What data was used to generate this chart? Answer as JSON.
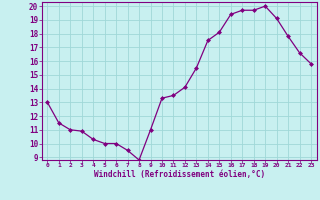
{
  "hours": [
    0,
    1,
    2,
    3,
    4,
    5,
    6,
    7,
    8,
    9,
    10,
    11,
    12,
    13,
    14,
    15,
    16,
    17,
    18,
    19,
    20,
    21,
    22,
    23
  ],
  "values": [
    13,
    11.5,
    11,
    10.9,
    10.3,
    10,
    10,
    9.5,
    8.8,
    11,
    13.3,
    13.5,
    14.1,
    15.5,
    17.5,
    18.1,
    19.4,
    19.7,
    19.7,
    20.0,
    19.1,
    17.8,
    16.6,
    15.8
  ],
  "ylim_min": 8.8,
  "ylim_max": 20.3,
  "yticks": [
    9,
    10,
    11,
    12,
    13,
    14,
    15,
    16,
    17,
    18,
    19,
    20
  ],
  "xticks": [
    0,
    1,
    2,
    3,
    4,
    5,
    6,
    7,
    8,
    9,
    10,
    11,
    12,
    13,
    14,
    15,
    16,
    17,
    18,
    19,
    20,
    21,
    22,
    23
  ],
  "xlabel": "Windchill (Refroidissement éolien,°C)",
  "line_color": "#800080",
  "marker_color": "#800080",
  "bg_color": "#c8f0f0",
  "grid_color": "#a0d8d8",
  "spine_color": "#800080"
}
